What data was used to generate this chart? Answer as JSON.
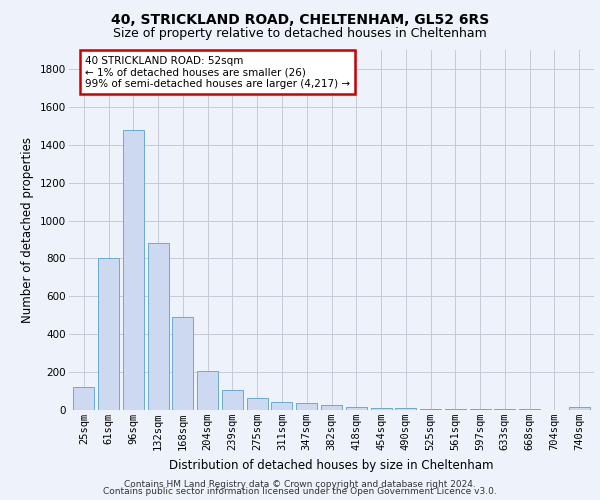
{
  "title1": "40, STRICKLAND ROAD, CHELTENHAM, GL52 6RS",
  "title2": "Size of property relative to detached houses in Cheltenham",
  "xlabel": "Distribution of detached houses by size in Cheltenham",
  "ylabel": "Number of detached properties",
  "categories": [
    "25sqm",
    "61sqm",
    "96sqm",
    "132sqm",
    "168sqm",
    "204sqm",
    "239sqm",
    "275sqm",
    "311sqm",
    "347sqm",
    "382sqm",
    "418sqm",
    "454sqm",
    "490sqm",
    "525sqm",
    "561sqm",
    "597sqm",
    "633sqm",
    "668sqm",
    "704sqm",
    "740sqm"
  ],
  "values": [
    120,
    800,
    1480,
    880,
    490,
    205,
    105,
    65,
    40,
    35,
    27,
    15,
    10,
    8,
    6,
    5,
    4,
    3,
    3,
    2,
    18
  ],
  "bar_color": "#ccd9f0",
  "bar_edge_color": "#6aaad4",
  "annotation_text": "40 STRICKLAND ROAD: 52sqm\n← 1% of detached houses are smaller (26)\n99% of semi-detached houses are larger (4,217) →",
  "annotation_box_color": "#ffffff",
  "annotation_box_edge_color": "#cc0000",
  "ylim": [
    0,
    1900
  ],
  "yticks": [
    0,
    200,
    400,
    600,
    800,
    1000,
    1200,
    1400,
    1600,
    1800
  ],
  "grid_color": "#c8c8d8",
  "bg_color": "#eef2fb",
  "footer1": "Contains HM Land Registry data © Crown copyright and database right 2024.",
  "footer2": "Contains public sector information licensed under the Open Government Licence v3.0.",
  "title1_fontsize": 10,
  "title2_fontsize": 9,
  "xlabel_fontsize": 8.5,
  "ylabel_fontsize": 8.5,
  "tick_fontsize": 7.5,
  "annotation_fontsize": 7.5,
  "footer_fontsize": 6.5
}
